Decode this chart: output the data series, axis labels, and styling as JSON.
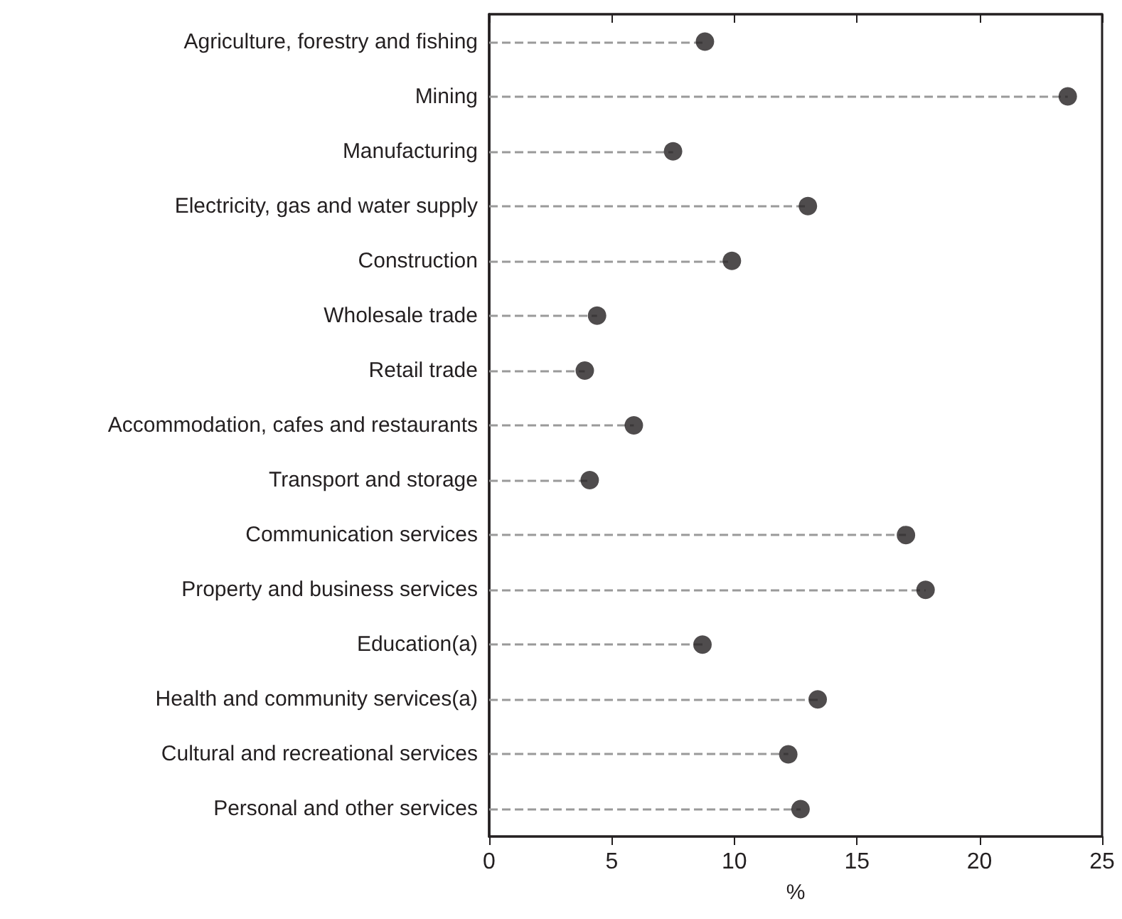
{
  "chart_data": {
    "type": "lollipop",
    "orientation": "horizontal",
    "xlabel": "%",
    "categories": [
      "Agriculture, forestry and fishing",
      "Mining",
      "Manufacturing",
      "Electricity, gas and water supply",
      "Construction",
      "Wholesale trade",
      "Retail trade",
      "Accommodation, cafes and restaurants",
      "Transport and storage",
      "Communication services",
      "Property and business services",
      "Education(a)",
      "Health and community services(a)",
      "Cultural and recreational services",
      "Personal and other services"
    ],
    "values": [
      8.8,
      23.6,
      7.5,
      13.0,
      9.9,
      4.4,
      3.9,
      5.9,
      4.1,
      17.0,
      17.8,
      8.7,
      13.4,
      12.2,
      12.7
    ],
    "color": "#231f20",
    "marker": "circle",
    "line_style": "dashed",
    "xlim": [
      0,
      25
    ],
    "xticks": [
      0,
      5,
      10,
      15,
      20,
      25
    ]
  }
}
